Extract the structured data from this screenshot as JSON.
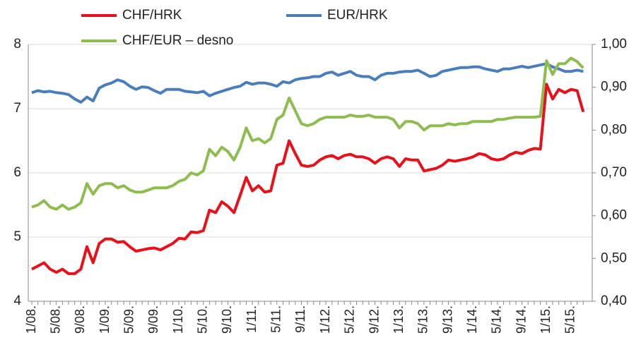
{
  "chart_data": {
    "type": "line",
    "categories": [
      "1/08.",
      null,
      null,
      null,
      "5/08.",
      null,
      null,
      null,
      "9/08.",
      null,
      null,
      null,
      "1/09.",
      null,
      null,
      null,
      "5/09.",
      null,
      null,
      null,
      "9/09.",
      null,
      null,
      null,
      "1/10.",
      null,
      null,
      null,
      "5/10.",
      null,
      null,
      null,
      "9/10.",
      null,
      null,
      null,
      "1/11.",
      null,
      null,
      null,
      "5/11.",
      null,
      null,
      null,
      "9/11.",
      null,
      null,
      null,
      "1/12.",
      null,
      null,
      null,
      "5/12.",
      null,
      null,
      null,
      "9/12.",
      null,
      null,
      null,
      "1/13.",
      null,
      null,
      null,
      "5/13.",
      null,
      null,
      null,
      "9/13.",
      null,
      null,
      null,
      "1/14.",
      null,
      null,
      null,
      "5/14.",
      null,
      null,
      null,
      "9/14.",
      null,
      null,
      null,
      "1/15.",
      null,
      null,
      null,
      "5/15.",
      null,
      null
    ],
    "series": [
      {
        "name": "CHF/HRK",
        "color": "#e8101a",
        "values": [
          4.5,
          4.55,
          4.6,
          4.5,
          4.45,
          4.5,
          4.43,
          4.43,
          4.5,
          4.85,
          4.6,
          4.9,
          4.97,
          4.97,
          4.92,
          4.93,
          4.85,
          4.78,
          4.8,
          4.82,
          4.83,
          4.8,
          4.85,
          4.9,
          4.98,
          4.97,
          5.08,
          5.07,
          5.1,
          5.42,
          5.38,
          5.55,
          5.48,
          5.38,
          5.65,
          5.93,
          5.72,
          5.8,
          5.7,
          5.72,
          6.12,
          6.15,
          6.5,
          6.3,
          6.12,
          6.1,
          6.12,
          6.2,
          6.25,
          6.27,
          6.22,
          6.27,
          6.29,
          6.25,
          6.25,
          6.22,
          6.15,
          6.22,
          6.25,
          6.22,
          6.1,
          6.22,
          6.2,
          6.2,
          6.03,
          6.05,
          6.07,
          6.12,
          6.2,
          6.18,
          6.2,
          6.22,
          6.25,
          6.3,
          6.28,
          6.22,
          6.2,
          6.22,
          6.28,
          6.32,
          6.3,
          6.35,
          6.38,
          6.37,
          7.38,
          7.15,
          7.3,
          7.25,
          7.3,
          7.28,
          6.95
        ]
      },
      {
        "name": "EUR/HRK",
        "color": "#4a7ebb",
        "values": [
          7.25,
          7.28,
          7.26,
          7.27,
          7.25,
          7.24,
          7.22,
          7.15,
          7.1,
          7.18,
          7.12,
          7.32,
          7.37,
          7.4,
          7.45,
          7.42,
          7.35,
          7.3,
          7.34,
          7.33,
          7.28,
          7.24,
          7.3,
          7.3,
          7.3,
          7.27,
          7.26,
          7.25,
          7.27,
          7.2,
          7.24,
          7.27,
          7.3,
          7.33,
          7.35,
          7.41,
          7.38,
          7.4,
          7.4,
          7.38,
          7.35,
          7.42,
          7.4,
          7.45,
          7.47,
          7.48,
          7.5,
          7.5,
          7.55,
          7.57,
          7.52,
          7.55,
          7.58,
          7.52,
          7.5,
          7.5,
          7.45,
          7.52,
          7.55,
          7.55,
          7.57,
          7.58,
          7.58,
          7.6,
          7.55,
          7.5,
          7.52,
          7.58,
          7.6,
          7.62,
          7.64,
          7.64,
          7.65,
          7.65,
          7.62,
          7.6,
          7.58,
          7.62,
          7.62,
          7.64,
          7.66,
          7.64,
          7.66,
          7.68,
          7.7,
          7.65,
          7.62,
          7.58,
          7.58,
          7.6,
          7.58
        ]
      },
      {
        "name": "CHF/EUR – desno",
        "color": "#8fbc4f",
        "axis": "y2",
        "values": [
          0.62,
          0.625,
          0.635,
          0.62,
          0.615,
          0.625,
          0.615,
          0.62,
          0.63,
          0.675,
          0.65,
          0.67,
          0.675,
          0.675,
          0.665,
          0.67,
          0.66,
          0.655,
          0.655,
          0.66,
          0.665,
          0.665,
          0.665,
          0.67,
          0.68,
          0.685,
          0.7,
          0.695,
          0.705,
          0.755,
          0.74,
          0.76,
          0.75,
          0.73,
          0.76,
          0.805,
          0.775,
          0.78,
          0.77,
          0.78,
          0.825,
          0.835,
          0.875,
          0.845,
          0.815,
          0.81,
          0.815,
          0.825,
          0.83,
          0.83,
          0.83,
          0.83,
          0.835,
          0.832,
          0.832,
          0.835,
          0.83,
          0.83,
          0.83,
          0.825,
          0.805,
          0.82,
          0.82,
          0.815,
          0.8,
          0.81,
          0.81,
          0.81,
          0.815,
          0.812,
          0.815,
          0.815,
          0.82,
          0.82,
          0.82,
          0.82,
          0.825,
          0.825,
          0.828,
          0.83,
          0.83,
          0.83,
          0.83,
          0.832,
          0.962,
          0.93,
          0.955,
          0.955,
          0.968,
          0.96,
          0.945
        ]
      }
    ],
    "ylim": [
      4,
      8
    ],
    "yticks": [
      4,
      5,
      6,
      7,
      8
    ],
    "y2lim": [
      0.4,
      1.0
    ],
    "y2ticks": [
      {
        "value": 0.4,
        "label": "0,40"
      },
      {
        "value": 0.5,
        "label": "0,50"
      },
      {
        "value": 0.6,
        "label": "0,60"
      },
      {
        "value": 0.7,
        "label": "0,70"
      },
      {
        "value": 0.8,
        "label": "0,80"
      },
      {
        "value": 0.9,
        "label": "0,90"
      },
      {
        "value": 1.0,
        "label": "1,00"
      }
    ],
    "grid": true
  }
}
